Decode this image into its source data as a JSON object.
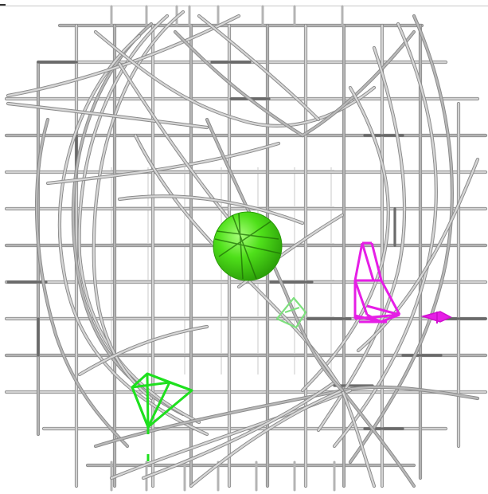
{
  "scene": {
    "type": "3d-wireframe-view",
    "background": "#ffffff",
    "colors": {
      "grid_light": "#d2d2d2",
      "grid_mid": "#b4b4b4",
      "grid_dark": "#6a6a6a",
      "grid_outline": "#8a8a8a",
      "target_sphere": "#3fd40f",
      "target_sphere_highlight": "#8cff5a",
      "camera_green": "#1ee01e",
      "camera_green_faint": "#8ce88c",
      "camera_magenta": "#e61ee6",
      "camera_magenta_dark": "#b000b0"
    },
    "objects": [
      {
        "name": "target-sphere",
        "icon": "sphere-icon"
      },
      {
        "name": "green-camera-frustum",
        "icon": "camera-frustum-icon"
      },
      {
        "name": "green-camera-small",
        "icon": "camera-frustum-icon"
      },
      {
        "name": "magenta-camera-frustum",
        "icon": "camera-frustum-icon"
      },
      {
        "name": "magenta-camera-small",
        "icon": "camera-frustum-icon"
      }
    ]
  }
}
